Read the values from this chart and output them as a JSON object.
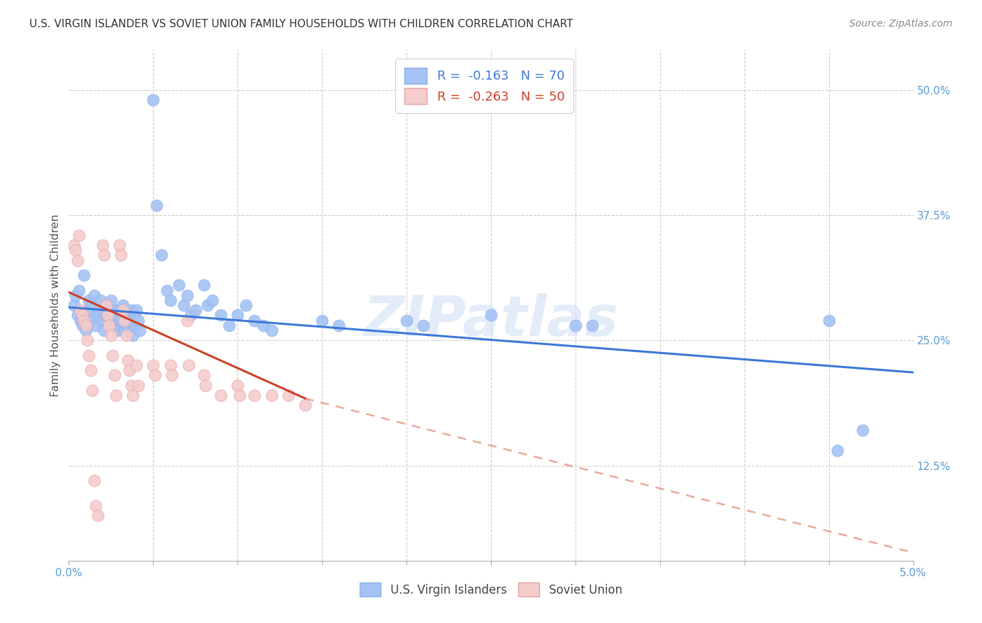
{
  "title": "U.S. VIRGIN ISLANDER VS SOVIET UNION FAMILY HOUSEHOLDS WITH CHILDREN CORRELATION CHART",
  "source": "Source: ZipAtlas.com",
  "ylabel": "Family Households with Children",
  "ylabel_right_ticks": [
    "50.0%",
    "37.5%",
    "25.0%",
    "12.5%"
  ],
  "ylabel_right_values": [
    0.5,
    0.375,
    0.25,
    0.125
  ],
  "xlim": [
    0.0,
    0.05
  ],
  "ylim": [
    0.03,
    0.54
  ],
  "blue_color": "#a4c2f4",
  "pink_color": "#f4cccc",
  "blue_line_color": "#3c78d8",
  "pink_line_color": "#cc4125",
  "blue_R": "-0.163",
  "blue_N": "70",
  "pink_R": "-0.263",
  "pink_N": "50",
  "watermark": "ZIPatlas",
  "blue_scatter": [
    [
      0.0003,
      0.285
    ],
    [
      0.0004,
      0.295
    ],
    [
      0.0005,
      0.275
    ],
    [
      0.0006,
      0.3
    ],
    [
      0.0007,
      0.27
    ],
    [
      0.0008,
      0.265
    ],
    [
      0.0009,
      0.315
    ],
    [
      0.001,
      0.26
    ],
    [
      0.0011,
      0.28
    ],
    [
      0.0012,
      0.29
    ],
    [
      0.0013,
      0.27
    ],
    [
      0.0014,
      0.285
    ],
    [
      0.0015,
      0.295
    ],
    [
      0.0016,
      0.265
    ],
    [
      0.0017,
      0.275
    ],
    [
      0.0018,
      0.28
    ],
    [
      0.0019,
      0.29
    ],
    [
      0.002,
      0.27
    ],
    [
      0.0021,
      0.26
    ],
    [
      0.0022,
      0.275
    ],
    [
      0.0023,
      0.285
    ],
    [
      0.0024,
      0.275
    ],
    [
      0.0025,
      0.29
    ],
    [
      0.0026,
      0.27
    ],
    [
      0.0027,
      0.28
    ],
    [
      0.0028,
      0.265
    ],
    [
      0.0029,
      0.26
    ],
    [
      0.003,
      0.28
    ],
    [
      0.0031,
      0.27
    ],
    [
      0.0032,
      0.285
    ],
    [
      0.0033,
      0.26
    ],
    [
      0.0034,
      0.275
    ],
    [
      0.0035,
      0.265
    ],
    [
      0.0036,
      0.27
    ],
    [
      0.0037,
      0.28
    ],
    [
      0.0038,
      0.255
    ],
    [
      0.0039,
      0.265
    ],
    [
      0.004,
      0.28
    ],
    [
      0.0041,
      0.27
    ],
    [
      0.0042,
      0.26
    ],
    [
      0.005,
      0.49
    ],
    [
      0.0052,
      0.385
    ],
    [
      0.0055,
      0.335
    ],
    [
      0.0058,
      0.3
    ],
    [
      0.006,
      0.29
    ],
    [
      0.0065,
      0.305
    ],
    [
      0.0068,
      0.285
    ],
    [
      0.007,
      0.295
    ],
    [
      0.0072,
      0.275
    ],
    [
      0.0075,
      0.28
    ],
    [
      0.008,
      0.305
    ],
    [
      0.0082,
      0.285
    ],
    [
      0.0085,
      0.29
    ],
    [
      0.009,
      0.275
    ],
    [
      0.0095,
      0.265
    ],
    [
      0.01,
      0.275
    ],
    [
      0.0105,
      0.285
    ],
    [
      0.011,
      0.27
    ],
    [
      0.0115,
      0.265
    ],
    [
      0.012,
      0.26
    ],
    [
      0.015,
      0.27
    ],
    [
      0.016,
      0.265
    ],
    [
      0.02,
      0.27
    ],
    [
      0.021,
      0.265
    ],
    [
      0.025,
      0.275
    ],
    [
      0.03,
      0.265
    ],
    [
      0.031,
      0.265
    ],
    [
      0.045,
      0.27
    ],
    [
      0.0455,
      0.14
    ],
    [
      0.047,
      0.16
    ]
  ],
  "pink_scatter": [
    [
      0.0003,
      0.345
    ],
    [
      0.0004,
      0.34
    ],
    [
      0.0005,
      0.33
    ],
    [
      0.0006,
      0.355
    ],
    [
      0.0007,
      0.28
    ],
    [
      0.0008,
      0.275
    ],
    [
      0.0009,
      0.27
    ],
    [
      0.001,
      0.265
    ],
    [
      0.0011,
      0.25
    ],
    [
      0.0012,
      0.235
    ],
    [
      0.0013,
      0.22
    ],
    [
      0.0014,
      0.2
    ],
    [
      0.0015,
      0.11
    ],
    [
      0.0016,
      0.085
    ],
    [
      0.0017,
      0.075
    ],
    [
      0.002,
      0.345
    ],
    [
      0.0021,
      0.335
    ],
    [
      0.0022,
      0.285
    ],
    [
      0.0023,
      0.275
    ],
    [
      0.0024,
      0.265
    ],
    [
      0.0025,
      0.255
    ],
    [
      0.0026,
      0.235
    ],
    [
      0.0027,
      0.215
    ],
    [
      0.0028,
      0.195
    ],
    [
      0.003,
      0.345
    ],
    [
      0.0031,
      0.335
    ],
    [
      0.0032,
      0.28
    ],
    [
      0.0033,
      0.27
    ],
    [
      0.0034,
      0.255
    ],
    [
      0.0035,
      0.23
    ],
    [
      0.0036,
      0.22
    ],
    [
      0.0037,
      0.205
    ],
    [
      0.0038,
      0.195
    ],
    [
      0.004,
      0.225
    ],
    [
      0.0041,
      0.205
    ],
    [
      0.005,
      0.225
    ],
    [
      0.0051,
      0.215
    ],
    [
      0.006,
      0.225
    ],
    [
      0.0061,
      0.215
    ],
    [
      0.007,
      0.27
    ],
    [
      0.0071,
      0.225
    ],
    [
      0.008,
      0.215
    ],
    [
      0.0081,
      0.205
    ],
    [
      0.009,
      0.195
    ],
    [
      0.01,
      0.205
    ],
    [
      0.0101,
      0.195
    ],
    [
      0.011,
      0.195
    ],
    [
      0.012,
      0.195
    ],
    [
      0.013,
      0.195
    ],
    [
      0.014,
      0.185
    ]
  ],
  "blue_trend": [
    0.0,
    0.283,
    0.05,
    0.218
  ],
  "pink_solid": [
    0.0,
    0.298,
    0.014,
    0.192
  ],
  "pink_dash": [
    0.014,
    0.192,
    0.05,
    0.038
  ]
}
